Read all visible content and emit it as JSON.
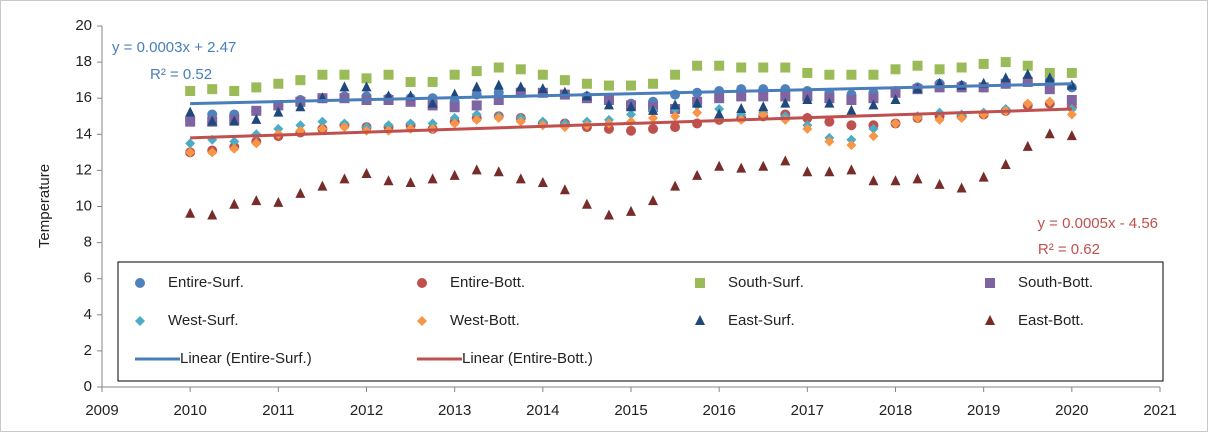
{
  "chart_data": {
    "type": "scatter",
    "y_label": "Temperature",
    "xlim": [
      2009,
      2021
    ],
    "xticks": [
      2009,
      2010,
      2011,
      2012,
      2013,
      2014,
      2015,
      2016,
      2017,
      2018,
      2019,
      2020,
      2021
    ],
    "ylim": [
      0,
      20
    ],
    "yticks": [
      0,
      2,
      4,
      6,
      8,
      10,
      12,
      14,
      16,
      18,
      20
    ],
    "grid": false,
    "legend_position": "bottom",
    "x": [
      2010,
      2010.25,
      2010.5,
      2010.75,
      2011,
      2011.25,
      2011.5,
      2011.75,
      2012,
      2012.25,
      2012.5,
      2012.75,
      2013,
      2013.25,
      2013.5,
      2013.75,
      2014,
      2014.25,
      2014.5,
      2014.75,
      2015,
      2015.25,
      2015.5,
      2015.75,
      2016,
      2016.25,
      2016.5,
      2016.75,
      2017,
      2017.25,
      2017.5,
      2017.75,
      2018,
      2018.25,
      2018.5,
      2018.75,
      2019,
      2019.25,
      2019.5,
      2019.75,
      2020
    ],
    "series": [
      {
        "name": "Entire-Surf.",
        "color": "#4f81bd",
        "marker": "circle",
        "values": [
          14.8,
          15.1,
          15.1,
          15.3,
          15.6,
          15.9,
          16.0,
          16.1,
          16.1,
          16.0,
          16.0,
          16.0,
          15.8,
          16.2,
          16.3,
          16.4,
          16.3,
          16.2,
          16.1,
          15.9,
          15.7,
          15.8,
          16.2,
          16.3,
          16.4,
          16.5,
          16.5,
          16.5,
          16.4,
          16.3,
          16.2,
          16.3,
          16.4,
          16.6,
          16.8,
          16.7,
          16.6,
          16.8,
          16.9,
          17.0,
          16.6
        ]
      },
      {
        "name": "Entire-Bott.",
        "color": "#c0504d",
        "marker": "circle",
        "values": [
          13.0,
          13.1,
          13.3,
          13.6,
          13.9,
          14.1,
          14.3,
          14.5,
          14.4,
          14.4,
          14.5,
          14.3,
          14.7,
          14.9,
          15.0,
          14.9,
          14.6,
          14.6,
          14.4,
          14.3,
          14.2,
          14.3,
          14.4,
          14.6,
          14.8,
          14.9,
          15.0,
          15.1,
          14.9,
          14.7,
          14.5,
          14.5,
          14.6,
          14.9,
          15.0,
          15.0,
          15.1,
          15.3,
          15.6,
          15.7,
          15.5
        ]
      },
      {
        "name": "South-Surf.",
        "color": "#9bbb59",
        "marker": "square",
        "values": [
          16.4,
          16.5,
          16.4,
          16.6,
          16.8,
          17.0,
          17.3,
          17.3,
          17.1,
          17.3,
          16.9,
          16.9,
          17.3,
          17.5,
          17.7,
          17.6,
          17.3,
          17.0,
          16.8,
          16.7,
          16.7,
          16.8,
          17.3,
          17.8,
          17.8,
          17.7,
          17.7,
          17.7,
          17.4,
          17.3,
          17.3,
          17.3,
          17.6,
          17.8,
          17.6,
          17.7,
          17.9,
          18.0,
          17.8,
          17.4,
          17.4
        ]
      },
      {
        "name": "South-Bott.",
        "color": "#8064a2",
        "marker": "square",
        "values": [
          14.7,
          14.7,
          14.8,
          15.3,
          15.6,
          15.8,
          16.0,
          16.0,
          15.9,
          15.9,
          15.8,
          15.6,
          15.5,
          15.6,
          15.9,
          16.3,
          16.3,
          16.2,
          16.0,
          15.9,
          15.6,
          15.5,
          15.4,
          15.8,
          16.0,
          16.1,
          16.1,
          16.1,
          16.1,
          16.0,
          15.9,
          16.0,
          16.3,
          16.5,
          16.6,
          16.6,
          16.6,
          16.8,
          16.9,
          16.5,
          15.9
        ]
      },
      {
        "name": "West-Surf.",
        "color": "#4bacc6",
        "marker": "diamond",
        "values": [
          13.5,
          13.7,
          13.6,
          14.0,
          14.3,
          14.5,
          14.7,
          14.6,
          14.4,
          14.5,
          14.6,
          14.6,
          14.9,
          15.1,
          15.0,
          14.9,
          14.7,
          14.6,
          14.7,
          14.8,
          15.1,
          15.3,
          15.4,
          15.6,
          15.4,
          15.1,
          15.2,
          15.0,
          14.5,
          13.8,
          13.7,
          14.3,
          14.6,
          15.0,
          15.2,
          15.1,
          15.2,
          15.4,
          15.7,
          15.8,
          15.4
        ]
      },
      {
        "name": "West-Bott.",
        "color": "#f79646",
        "marker": "diamond",
        "values": [
          13.0,
          13.0,
          13.2,
          13.5,
          14.0,
          14.2,
          14.3,
          14.4,
          14.2,
          14.2,
          14.3,
          14.3,
          14.6,
          14.8,
          14.9,
          14.7,
          14.5,
          14.4,
          14.5,
          14.6,
          14.7,
          14.9,
          15.0,
          15.2,
          14.9,
          14.8,
          15.1,
          14.8,
          14.3,
          13.6,
          13.4,
          13.9,
          14.6,
          14.9,
          14.8,
          14.9,
          15.1,
          15.3,
          15.7,
          15.8,
          15.1
        ]
      },
      {
        "name": "East-Surf.",
        "color": "#1f497d",
        "marker": "triangle",
        "values": [
          15.2,
          14.7,
          14.7,
          14.8,
          15.2,
          15.5,
          16.0,
          16.6,
          16.6,
          16.1,
          16.1,
          15.7,
          16.2,
          16.6,
          16.7,
          16.6,
          16.5,
          16.3,
          16.1,
          15.6,
          15.5,
          15.3,
          15.6,
          15.7,
          15.1,
          15.4,
          15.5,
          15.7,
          15.9,
          15.7,
          15.3,
          15.6,
          15.9,
          16.5,
          16.8,
          16.7,
          16.8,
          17.1,
          17.3,
          17.1,
          16.7
        ]
      },
      {
        "name": "East-Bott.",
        "color": "#772c2a",
        "marker": "triangle",
        "values": [
          9.6,
          9.5,
          10.1,
          10.3,
          10.2,
          10.7,
          11.1,
          11.5,
          11.8,
          11.4,
          11.3,
          11.5,
          11.7,
          12.0,
          11.9,
          11.5,
          11.3,
          10.9,
          10.1,
          9.5,
          9.7,
          10.3,
          11.1,
          11.7,
          12.2,
          12.1,
          12.2,
          12.5,
          11.9,
          11.9,
          12.0,
          11.4,
          11.4,
          11.5,
          11.2,
          11.0,
          11.6,
          12.3,
          13.3,
          14.0,
          13.9
        ]
      }
    ],
    "trendlines": [
      {
        "name": "Linear (Entire-Surf.)",
        "color": "#4a7ebb",
        "x": [
          2010,
          2020
        ],
        "values": [
          15.7,
          16.8
        ],
        "equation": "y = 0.0003x + 2.47",
        "r2": "R² = 0.52"
      },
      {
        "name": "Linear (Entire-Bott.)",
        "color": "#c0504d",
        "x": [
          2010,
          2020
        ],
        "values": [
          13.8,
          15.4
        ],
        "equation": "y = 0.0005x - 4.56",
        "r2": "R² = 0.62"
      }
    ]
  }
}
